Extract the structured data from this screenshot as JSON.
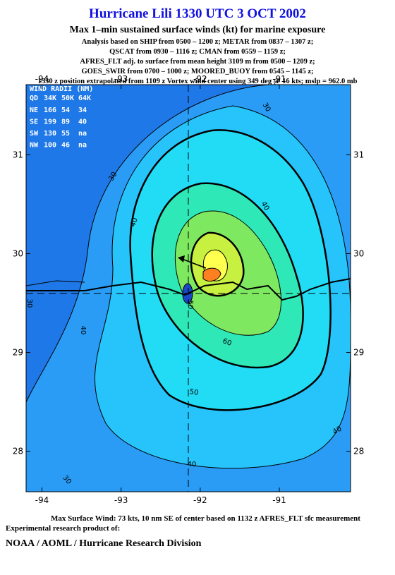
{
  "header": {
    "title": "Hurricane Lili 1330 UTC 3 OCT 2002",
    "subtitle": "Max 1–min sustained surface winds (kt) for marine exposure",
    "lines": [
      "Analysis based on  SHIP from 0500 – 1200 z;  METAR from 0837 – 1307 z;",
      "QSCAT from 0930 – 1116 z;  CMAN from 0559 – 1159 z;",
      "AFRES_FLT adj. to surface from mean height 3109 m from 0500 – 1209 z;",
      "GOES_SWIR from 0700 – 1000 z;  MOORED_BUOY from 0545 – 1145 z;",
      "1330 z position extrapolated from 1109 z Vortex wind center using 349 deg @ 16 kts; mslp = 962.0 mb"
    ]
  },
  "map": {
    "xlim": [
      -94.2,
      -90.1
    ],
    "ylim": [
      27.59,
      31.71
    ],
    "xticks": [
      -94,
      -93,
      -92,
      -91
    ],
    "yticks": [
      31,
      30,
      29,
      28
    ],
    "contour_labels": [
      "30",
      "30",
      "40",
      "40",
      "50",
      "60",
      "50",
      "40",
      "40",
      "40",
      "30",
      "30"
    ]
  },
  "wind_radii": {
    "title": "WIND RADII (NM)",
    "header": [
      "QD",
      "34K",
      "50K",
      "64K"
    ],
    "rows": [
      [
        "NE",
        "166",
        "54",
        "34"
      ],
      [
        "SE",
        "199",
        "89",
        "40"
      ],
      [
        "SW",
        "130",
        "55",
        "na"
      ],
      [
        "NW",
        "100",
        "46",
        "na"
      ]
    ]
  },
  "footer": {
    "note": "Max Surface Wind: 73 kts, 10 nm SE of center based on 1132 z AFRES_FLT sfc measurement",
    "product": "Experimental research product of:",
    "org": "NOAA / AOML / Hurricane Research Division"
  }
}
